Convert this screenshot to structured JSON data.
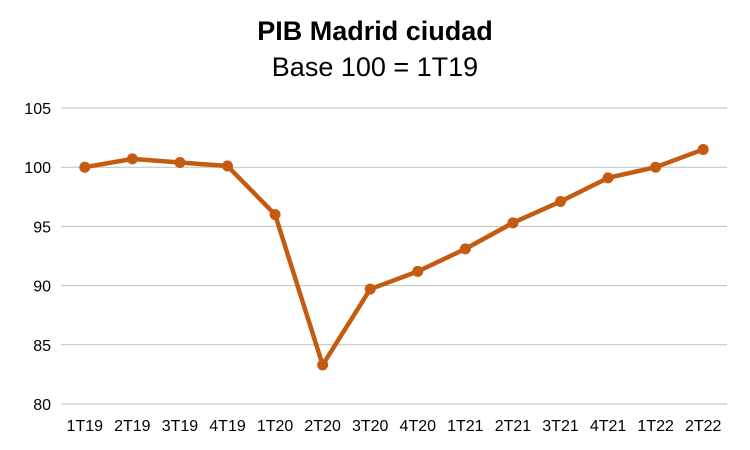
{
  "chart_data": {
    "type": "line",
    "title": "PIB Madrid ciudad",
    "subtitle": "Base 100 = 1T19",
    "xlabel": "",
    "ylabel": "",
    "categories": [
      "1T19",
      "2T19",
      "3T19",
      "4T19",
      "1T20",
      "2T20",
      "3T20",
      "4T20",
      "1T21",
      "2T21",
      "3T21",
      "4T21",
      "1T22",
      "2T22"
    ],
    "series": [
      {
        "values": [
          100.0,
          100.7,
          100.4,
          100.1,
          96.0,
          83.3,
          89.7,
          91.2,
          93.1,
          95.3,
          97.1,
          99.1,
          100.0,
          101.5
        ],
        "color": "#c55a11"
      }
    ],
    "ylim": [
      80,
      105
    ],
    "yticks": [
      80,
      85,
      90,
      95,
      100,
      105
    ],
    "grid": true,
    "gridColor": "#bfbfbf",
    "legend": "none"
  }
}
